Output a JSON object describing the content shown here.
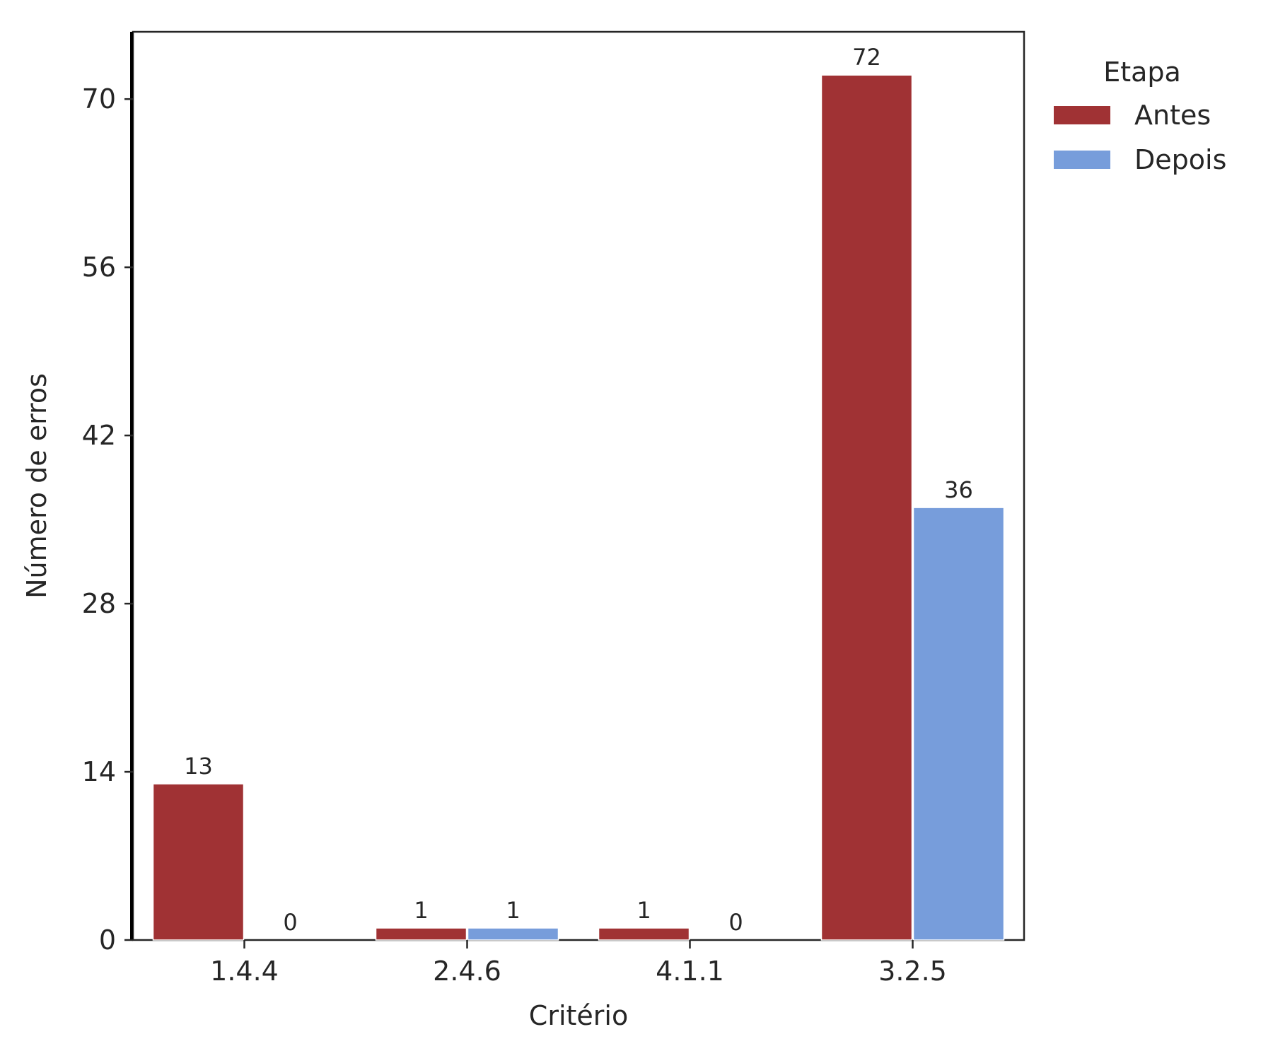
{
  "chart_data": {
    "type": "bar",
    "xlabel": "Critério",
    "ylabel": "Número de erros",
    "categories": [
      "1.4.4",
      "2.4.6",
      "4.1.1",
      "3.2.5"
    ],
    "series": [
      {
        "name": "Antes",
        "color": "#a03234",
        "values": [
          13,
          1,
          1,
          72
        ]
      },
      {
        "name": "Depois",
        "color": "#779ddb",
        "values": [
          0,
          1,
          0,
          36
        ]
      }
    ],
    "ylim": [
      0,
      75.6
    ],
    "yticks": [
      0,
      14,
      28,
      42,
      56,
      70
    ],
    "legend": {
      "title": "Etapa",
      "placement": "outside-top-right"
    },
    "grid": false
  }
}
